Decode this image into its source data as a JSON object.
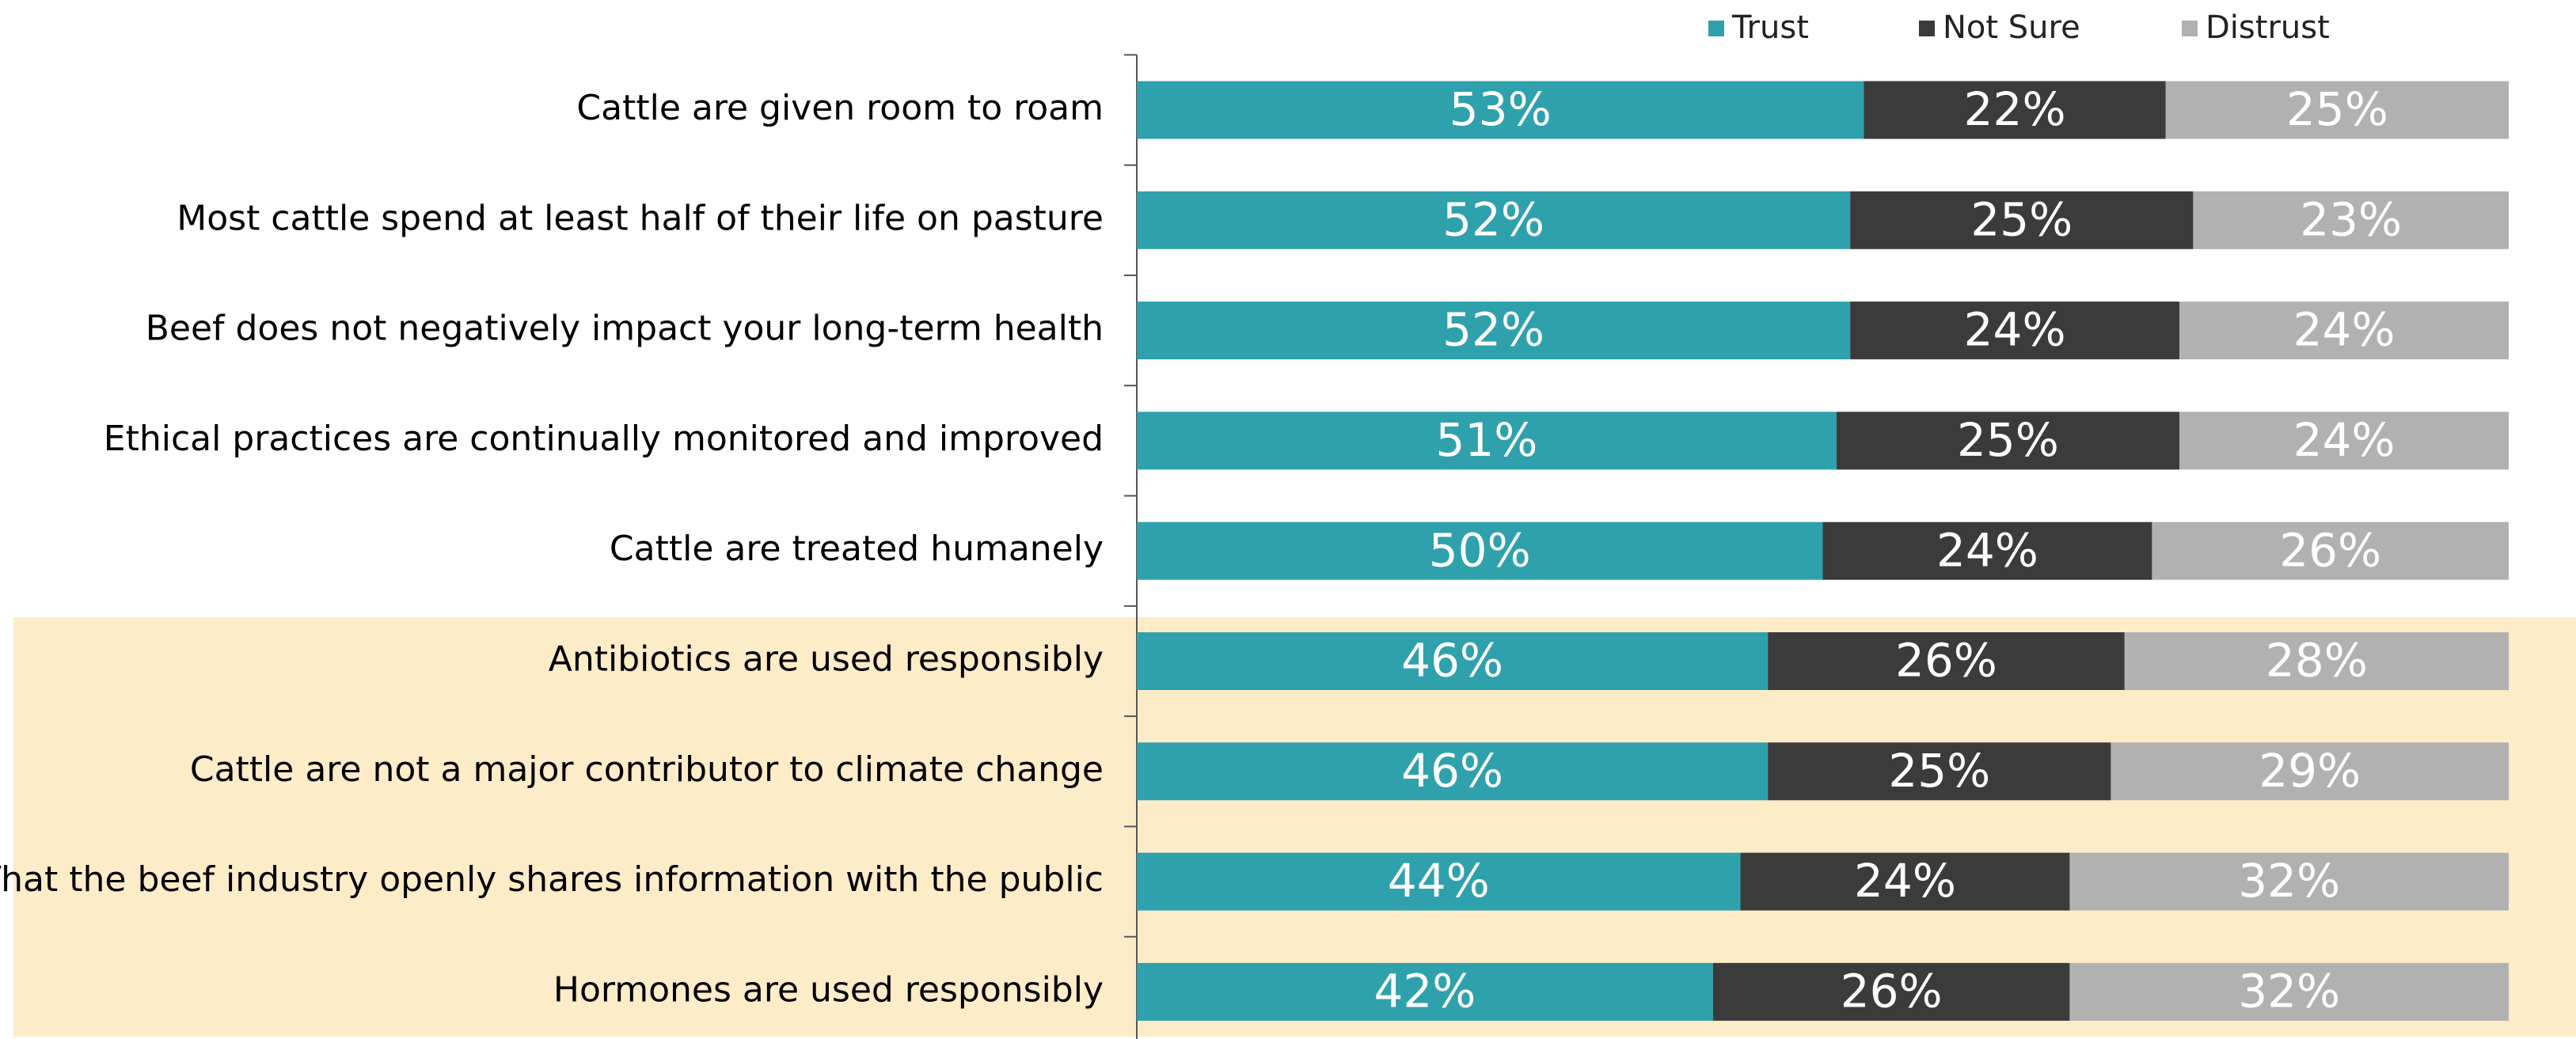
{
  "chart_data": {
    "type": "stacked_barh",
    "categories": [
      "Cattle are given room to roam",
      "Most cattle spend at least half of their life on pasture",
      "Beef does not negatively impact your long-term health",
      "Ethical practices are continually monitored and improved",
      "Cattle are treated humanely",
      "Antibiotics are used responsibly",
      "Cattle are not a major contributor to climate change",
      "That the beef industry openly shares information with the public",
      "Hormones are used responsibly"
    ],
    "series": [
      {
        "name": "Trust",
        "color": "#2ea1ac",
        "values": [
          53,
          52,
          52,
          51,
          50,
          46,
          46,
          44,
          42
        ],
        "value_labels": [
          "53%",
          "52%",
          "52%",
          "51%",
          "50%",
          "46%",
          "46%",
          "44%",
          "42%"
        ]
      },
      {
        "name": "Not Sure",
        "color": "#3b3b3b",
        "values": [
          22,
          25,
          24,
          25,
          24,
          26,
          25,
          24,
          26
        ],
        "value_labels": [
          "22%",
          "25%",
          "24%",
          "25%",
          "24%",
          "26%",
          "25%",
          "24%",
          "26%"
        ]
      },
      {
        "name": "Distrust",
        "color": "#b1b1b1",
        "values": [
          25,
          23,
          24,
          24,
          26,
          28,
          29,
          32,
          32
        ],
        "value_labels": [
          "25%",
          "23%",
          "24%",
          "24%",
          "26%",
          "28%",
          "29%",
          "32%",
          "32%"
        ]
      }
    ],
    "xlim": [
      0,
      100
    ]
  }
}
